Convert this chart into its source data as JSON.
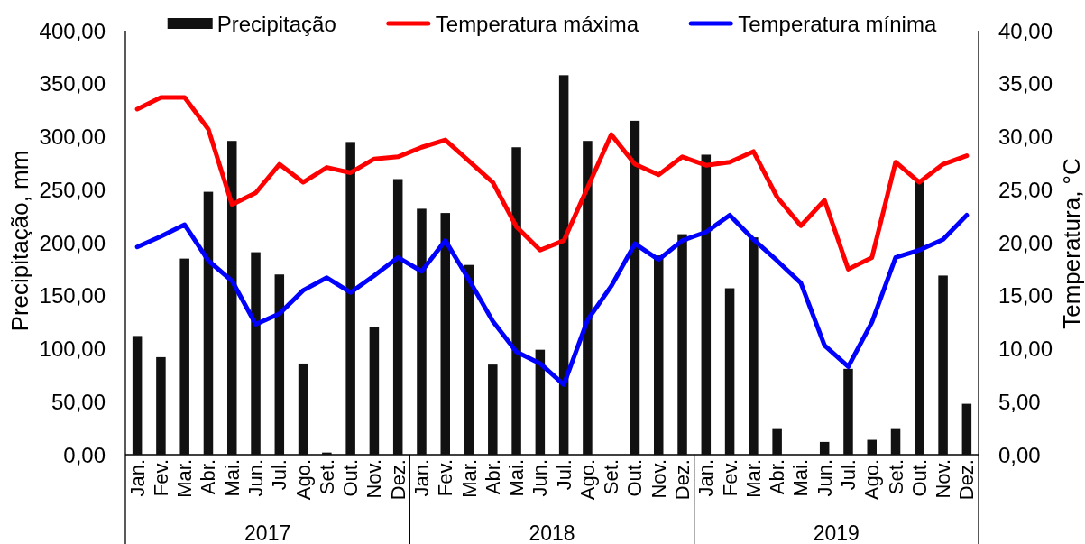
{
  "chart_data": {
    "type": "bar",
    "categories": [
      "Jan.",
      "Fev.",
      "Mar.",
      "Abr.",
      "Mai.",
      "Jun.",
      "Jul.",
      "Ago.",
      "Set.",
      "Out.",
      "Nov.",
      "Dez.",
      "Jan.",
      "Fev.",
      "Mar.",
      "Abr.",
      "Mai.",
      "Jun.",
      "Jul.",
      "Ago.",
      "Set.",
      "Out.",
      "Nov.",
      "Dez.",
      "Jan.",
      "Fev.",
      "Mar.",
      "Abr.",
      "Mai.",
      "Jun.",
      "Jul.",
      "Ago.",
      "Set.",
      "Out.",
      "Nov.",
      "Dez."
    ],
    "ylabel": "Precipitação, mm",
    "y2label": "Temperatura, °C",
    "ylim": [
      0,
      400
    ],
    "yticks": [
      {
        "value": 0,
        "label": "0,00"
      },
      {
        "value": 50,
        "label": "50,00"
      },
      {
        "value": 100,
        "label": "100,00"
      },
      {
        "value": 150,
        "label": "150,00"
      },
      {
        "value": 200,
        "label": "200,00"
      },
      {
        "value": 250,
        "label": "250,00"
      },
      {
        "value": 300,
        "label": "300,00"
      },
      {
        "value": 350,
        "label": "350,00"
      },
      {
        "value": 400,
        "label": "400,00"
      }
    ],
    "y2lim": [
      0,
      40
    ],
    "y2ticks": [
      {
        "value": 0,
        "label": "0,00"
      },
      {
        "value": 5,
        "label": "5,00"
      },
      {
        "value": 10,
        "label": "10,00"
      },
      {
        "value": 15,
        "label": "15,00"
      },
      {
        "value": 20,
        "label": "20,00"
      },
      {
        "value": 25,
        "label": "25,00"
      },
      {
        "value": 30,
        "label": "30,00"
      },
      {
        "value": 35,
        "label": "35,00"
      },
      {
        "value": 40,
        "label": "40,00"
      }
    ],
    "legend": "top",
    "annotations": [
      "2017",
      "2018",
      "2019"
    ],
    "series": [
      {
        "name": "Precipitação",
        "color": "#111111",
        "values": [
          112,
          92,
          185,
          248,
          296,
          191,
          170,
          86,
          2,
          295,
          120,
          260,
          232,
          228,
          179,
          85,
          290,
          99,
          358,
          296,
          0,
          315,
          188,
          208,
          283,
          157,
          205,
          25,
          0,
          12,
          81,
          14,
          25,
          257,
          169,
          48
        ]
      },
      {
        "name": "Temperatura máxima",
        "type": "line",
        "axis": "y2",
        "color": "#ff0000",
        "values": [
          32.6,
          33.7,
          33.7,
          30.7,
          23.6,
          24.7,
          27.4,
          25.7,
          27.1,
          26.6,
          27.9,
          28.1,
          29.0,
          29.7,
          27.7,
          25.7,
          21.5,
          19.3,
          20.2,
          25.2,
          30.2,
          27.4,
          26.4,
          28.1,
          27.3,
          27.6,
          28.6,
          24.3,
          21.6,
          24.0,
          17.5,
          18.6,
          27.6,
          25.7,
          27.4,
          28.2
        ]
      },
      {
        "name": "Temperatura mínima",
        "type": "line",
        "axis": "y2",
        "color": "#0000ff",
        "values": [
          19.6,
          20.6,
          21.7,
          18.3,
          16.4,
          12.3,
          13.3,
          15.5,
          16.7,
          15.3,
          16.9,
          18.6,
          17.3,
          20.2,
          16.5,
          12.6,
          9.7,
          8.6,
          6.6,
          12.7,
          15.9,
          19.9,
          18.4,
          20.2,
          21.0,
          22.6,
          20.3,
          18.3,
          16.2,
          10.3,
          8.3,
          12.5,
          18.6,
          19.3,
          20.3,
          22.6
        ]
      }
    ]
  }
}
